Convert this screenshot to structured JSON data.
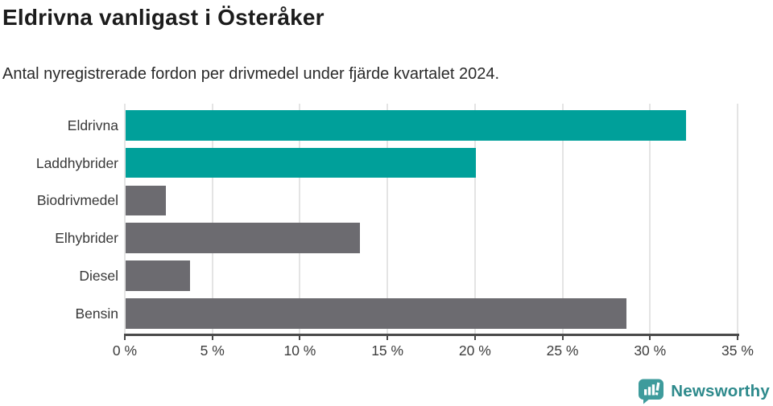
{
  "header": {
    "title": "Eldrivna vanligast i Österåker",
    "subtitle": "Antal nyregistrerade fordon per drivmedel under fjärde kvartalet 2024."
  },
  "chart_data": {
    "type": "bar",
    "orientation": "horizontal",
    "title": "Eldrivna vanligast i Österåker",
    "subtitle": "Antal nyregistrerade fordon per drivmedel under fjärde kvartalet 2024.",
    "categories": [
      "Eldrivna",
      "Laddhybrider",
      "Biodrivmedel",
      "Elhybrider",
      "Diesel",
      "Bensin"
    ],
    "values": [
      32.0,
      20.0,
      2.3,
      13.4,
      3.7,
      28.6
    ],
    "unit": "%",
    "xlim": [
      0,
      35
    ],
    "x_tick_values": [
      0,
      5,
      10,
      15,
      20,
      25,
      30,
      35
    ],
    "x_tick_labels": [
      "0 %",
      "5 %",
      "10 %",
      "15 %",
      "20 %",
      "25 %",
      "30 %",
      "35 %"
    ],
    "grid": true,
    "legend": false,
    "colors": [
      "#00a09a",
      "#00a09a",
      "#6c6b70",
      "#6c6b70",
      "#6c6b70",
      "#6c6b70"
    ],
    "highlight_color": "#00a09a",
    "default_color": "#6c6b70",
    "gridline_color": "#e4e4e4",
    "axis_color": "#4a4a4a"
  },
  "footer": {
    "brand": "Newsworthy",
    "brand_color": "#2e8a8c",
    "logo_color": "#3e9b9c",
    "icon": "newsworthy-logo-icon"
  }
}
